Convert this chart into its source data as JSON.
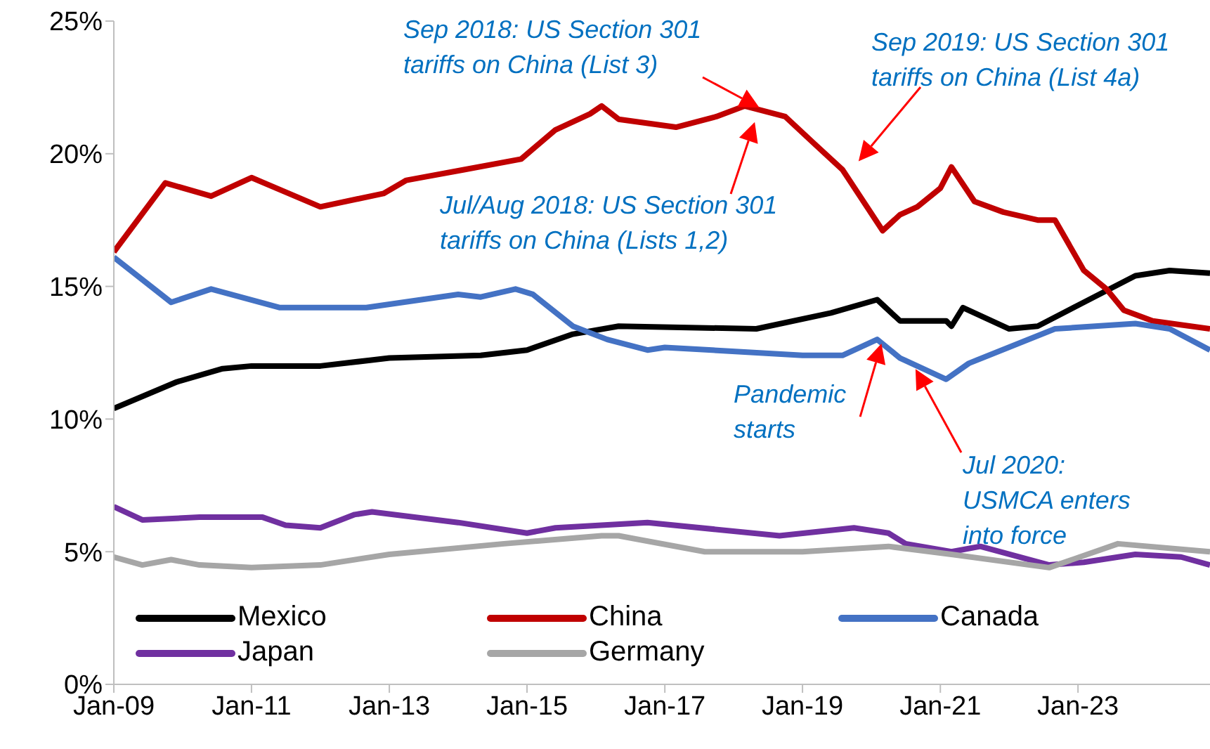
{
  "chart_data": {
    "type": "line",
    "xlim": [
      "2009-01",
      "2024-12"
    ],
    "xticks": [
      {
        "value": "2009-01",
        "label": "Jan-09"
      },
      {
        "value": "2011-01",
        "label": "Jan-11"
      },
      {
        "value": "2013-01",
        "label": "Jan-13"
      },
      {
        "value": "2015-01",
        "label": "Jan-15"
      },
      {
        "value": "2017-01",
        "label": "Jan-17"
      },
      {
        "value": "2019-01",
        "label": "Jan-19"
      },
      {
        "value": "2021-01",
        "label": "Jan-21"
      },
      {
        "value": "2023-01",
        "label": "Jan-23"
      }
    ],
    "ylim": [
      0,
      25
    ],
    "yticks": [
      {
        "value": 0,
        "label": "0%"
      },
      {
        "value": 5,
        "label": "5%"
      },
      {
        "value": 10,
        "label": "10%"
      },
      {
        "value": 15,
        "label": "15%"
      },
      {
        "value": 20,
        "label": "20%"
      },
      {
        "value": 25,
        "label": "25%"
      }
    ],
    "grid": false,
    "legend": "bottom",
    "marker": "none",
    "line_style": "solid",
    "series": [
      {
        "name": "Mexico",
        "color": "#000000",
        "x": [
          "2009-01",
          "2009-12",
          "2010-08",
          "2011-01",
          "2012-01",
          "2013-01",
          "2014-05",
          "2015-01",
          "2015-09",
          "2016-05",
          "2018-05",
          "2019-06",
          "2020-02",
          "2020-06",
          "2021-02",
          "2021-03",
          "2021-05",
          "2022-01",
          "2022-06",
          "2023-02",
          "2023-11",
          "2024-05",
          "2024-12"
        ],
        "values": [
          10.4,
          11.4,
          11.9,
          12.0,
          12.0,
          12.3,
          12.4,
          12.6,
          13.2,
          13.5,
          13.4,
          14.0,
          14.5,
          13.7,
          13.7,
          13.5,
          14.2,
          13.4,
          13.5,
          14.4,
          15.4,
          15.6,
          15.5
        ]
      },
      {
        "name": "China",
        "color": "#c00000",
        "x": [
          "2009-01",
          "2009-10",
          "2010-06",
          "2011-01",
          "2012-01",
          "2012-12",
          "2013-04",
          "2014-02",
          "2014-12",
          "2015-06",
          "2015-12",
          "2016-02",
          "2016-05",
          "2017-03",
          "2017-10",
          "2018-03",
          "2018-10",
          "2019-03",
          "2019-08",
          "2020-03",
          "2020-06",
          "2020-09",
          "2021-01",
          "2021-03",
          "2021-07",
          "2021-12",
          "2022-06",
          "2022-09",
          "2023-02",
          "2023-06",
          "2023-09",
          "2024-02",
          "2024-12"
        ],
        "values": [
          16.3,
          18.9,
          18.4,
          19.1,
          18.0,
          18.5,
          19.0,
          19.4,
          19.8,
          20.9,
          21.5,
          21.8,
          21.3,
          21.0,
          21.4,
          21.8,
          21.4,
          20.4,
          19.4,
          17.1,
          17.7,
          18.0,
          18.7,
          19.5,
          18.2,
          17.8,
          17.5,
          17.5,
          15.6,
          14.9,
          14.1,
          13.7,
          13.4
        ]
      },
      {
        "name": "Canada",
        "color": "#4472c4",
        "x": [
          "2009-01",
          "2009-11",
          "2010-06",
          "2011-06",
          "2012-09",
          "2014-01",
          "2014-05",
          "2014-11",
          "2015-02",
          "2015-09",
          "2016-03",
          "2016-10",
          "2017-01",
          "2019-01",
          "2019-08",
          "2020-02",
          "2020-06",
          "2021-02",
          "2021-06",
          "2022-09",
          "2023-11",
          "2024-05",
          "2024-12"
        ],
        "values": [
          16.1,
          14.4,
          14.9,
          14.2,
          14.2,
          14.7,
          14.6,
          14.9,
          14.7,
          13.5,
          13.0,
          12.6,
          12.7,
          12.4,
          12.4,
          13.0,
          12.3,
          11.5,
          12.1,
          13.4,
          13.6,
          13.4,
          12.6
        ]
      },
      {
        "name": "Japan",
        "color": "#7030a0",
        "x": [
          "2009-01",
          "2009-06",
          "2010-04",
          "2011-03",
          "2011-07",
          "2012-01",
          "2012-07",
          "2012-10",
          "2014-01",
          "2015-01",
          "2015-06",
          "2016-10",
          "2018-09",
          "2019-10",
          "2020-04",
          "2020-07",
          "2021-03",
          "2021-08",
          "2022-08",
          "2023-02",
          "2023-11",
          "2024-07",
          "2024-12"
        ],
        "values": [
          6.7,
          6.2,
          6.3,
          6.3,
          6.0,
          5.9,
          6.4,
          6.5,
          6.1,
          5.7,
          5.9,
          6.1,
          5.6,
          5.9,
          5.7,
          5.3,
          5.0,
          5.2,
          4.5,
          4.6,
          4.9,
          4.8,
          4.5
        ]
      },
      {
        "name": "Germany",
        "color": "#a6a6a6",
        "x": [
          "2009-01",
          "2009-06",
          "2009-11",
          "2010-04",
          "2011-01",
          "2012-01",
          "2013-01",
          "2014-09",
          "2016-02",
          "2016-05",
          "2017-08",
          "2019-01",
          "2020-04",
          "2021-03",
          "2022-08",
          "2023-08",
          "2024-12"
        ],
        "values": [
          4.8,
          4.5,
          4.7,
          4.5,
          4.4,
          4.5,
          4.9,
          5.3,
          5.6,
          5.6,
          5.0,
          5.0,
          5.2,
          4.9,
          4.4,
          5.3,
          5.0
        ]
      }
    ],
    "annotations": [
      "Sep 2018: US Section 301\ntariffs on China (List 3)",
      "Sep 2019: US Section 301\ntariffs on China (List 4a)",
      "Jul/Aug 2018: US Section 301\ntariffs on China (Lists 1,2)",
      {
        "text": "Pandemic\nstarts",
        "x": "2020-03",
        "y": 13.0
      },
      "Jul 2020:\nUSMCA enters\ninto force"
    ]
  }
}
